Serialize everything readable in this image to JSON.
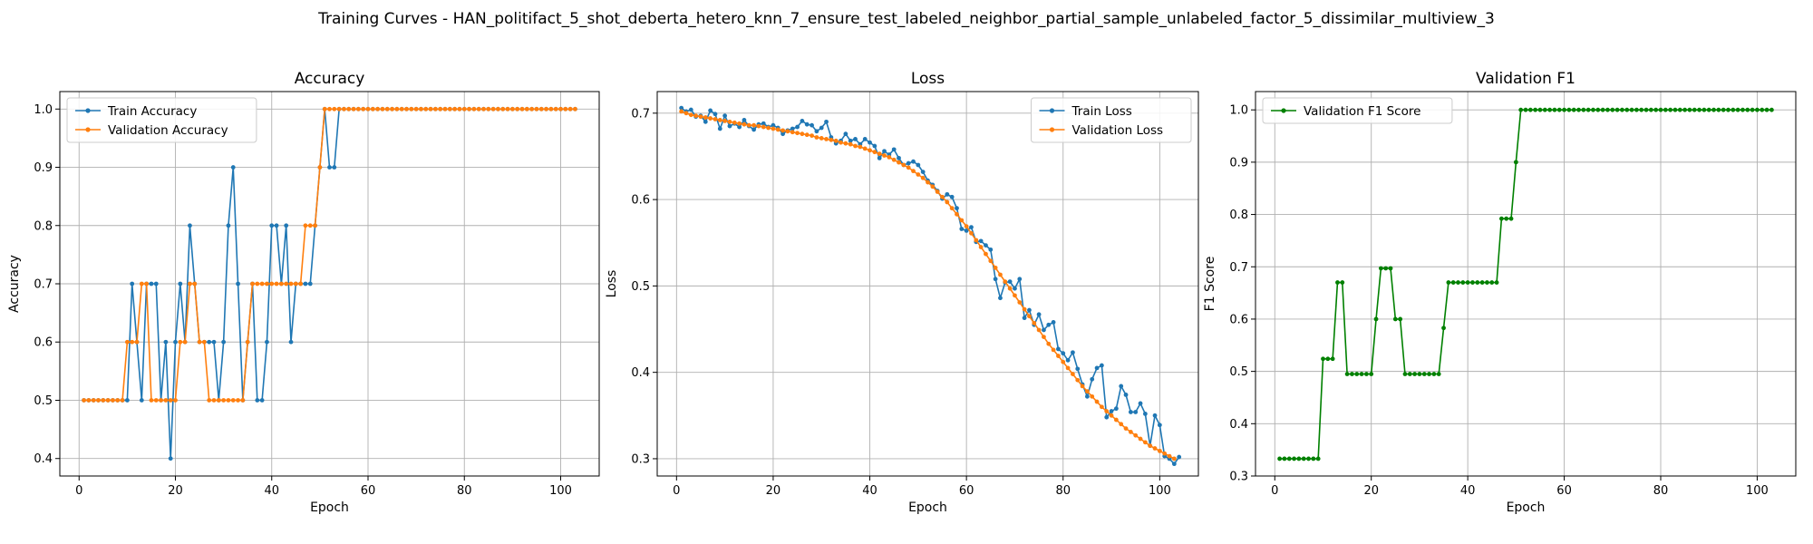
{
  "figure": {
    "suptitle": "Training Curves - HAN_politifact_5_shot_deberta_hetero_knn_7_ensure_test_labeled_neighbor_partial_sample_unlabeled_factor_5_dissimilar_multiview_3"
  },
  "chart_data": [
    {
      "type": "line",
      "title": "Accuracy",
      "xlabel": "Epoch",
      "ylabel": "Accuracy",
      "xlim": [
        -4,
        108
      ],
      "ylim": [
        0.37,
        1.03
      ],
      "xticks": [
        0,
        20,
        40,
        60,
        80,
        100
      ],
      "yticks": [
        0.4,
        0.5,
        0.6,
        0.7,
        0.8,
        0.9,
        1.0
      ],
      "grid": true,
      "legend_loc": "upper-left",
      "series": [
        {
          "name": "Train Accuracy",
          "color": "#1f77b4",
          "x_start": 1,
          "values": [
            0.5,
            0.5,
            0.5,
            0.5,
            0.5,
            0.5,
            0.5,
            0.5,
            0.5,
            0.5,
            0.7,
            0.6,
            0.5,
            0.7,
            0.7,
            0.7,
            0.5,
            0.6,
            0.4,
            0.6,
            0.7,
            0.6,
            0.8,
            0.7,
            0.6,
            0.6,
            0.6,
            0.6,
            0.5,
            0.6,
            0.8,
            0.9,
            0.7,
            0.5,
            0.6,
            0.7,
            0.5,
            0.5,
            0.6,
            0.8,
            0.8,
            0.7,
            0.8,
            0.6,
            0.7,
            0.7,
            0.7,
            0.7,
            0.8,
            0.9,
            1.0,
            0.9,
            0.9,
            1.0,
            1.0,
            1.0,
            1.0,
            1.0,
            1.0,
            1.0,
            1.0,
            1.0,
            1.0,
            1.0,
            1.0,
            1.0,
            1.0,
            1.0,
            1.0,
            1.0,
            1.0,
            1.0,
            1.0,
            1.0,
            1.0,
            1.0,
            1.0,
            1.0,
            1.0,
            1.0,
            1.0,
            1.0,
            1.0,
            1.0,
            1.0,
            1.0,
            1.0,
            1.0,
            1.0,
            1.0,
            1.0,
            1.0,
            1.0,
            1.0,
            1.0,
            1.0,
            1.0,
            1.0,
            1.0,
            1.0,
            1.0,
            1.0,
            1.0
          ]
        },
        {
          "name": "Validation Accuracy",
          "color": "#ff7f0e",
          "x_start": 1,
          "values": [
            0.5,
            0.5,
            0.5,
            0.5,
            0.5,
            0.5,
            0.5,
            0.5,
            0.5,
            0.6,
            0.6,
            0.6,
            0.7,
            0.7,
            0.5,
            0.5,
            0.5,
            0.5,
            0.5,
            0.5,
            0.6,
            0.6,
            0.7,
            0.7,
            0.6,
            0.6,
            0.5,
            0.5,
            0.5,
            0.5,
            0.5,
            0.5,
            0.5,
            0.5,
            0.6,
            0.7,
            0.7,
            0.7,
            0.7,
            0.7,
            0.7,
            0.7,
            0.7,
            0.7,
            0.7,
            0.7,
            0.8,
            0.8,
            0.8,
            0.9,
            1.0,
            1.0,
            1.0,
            1.0,
            1.0,
            1.0,
            1.0,
            1.0,
            1.0,
            1.0,
            1.0,
            1.0,
            1.0,
            1.0,
            1.0,
            1.0,
            1.0,
            1.0,
            1.0,
            1.0,
            1.0,
            1.0,
            1.0,
            1.0,
            1.0,
            1.0,
            1.0,
            1.0,
            1.0,
            1.0,
            1.0,
            1.0,
            1.0,
            1.0,
            1.0,
            1.0,
            1.0,
            1.0,
            1.0,
            1.0,
            1.0,
            1.0,
            1.0,
            1.0,
            1.0,
            1.0,
            1.0,
            1.0,
            1.0,
            1.0,
            1.0,
            1.0,
            1.0
          ]
        }
      ]
    },
    {
      "type": "line",
      "title": "Loss",
      "xlabel": "Epoch",
      "ylabel": "Loss",
      "xlim": [
        -4,
        108
      ],
      "ylim": [
        0.28,
        0.725
      ],
      "xticks": [
        0,
        20,
        40,
        60,
        80,
        100
      ],
      "yticks": [
        0.3,
        0.4,
        0.5,
        0.6,
        0.7
      ],
      "grid": true,
      "legend_loc": "upper-right",
      "series": [
        {
          "name": "Train Loss",
          "color": "#1f77b4",
          "x_start": 1,
          "values": [
            0.706,
            0.702,
            0.704,
            0.696,
            0.697,
            0.69,
            0.703,
            0.699,
            0.682,
            0.697,
            0.685,
            0.688,
            0.684,
            0.692,
            0.685,
            0.681,
            0.687,
            0.688,
            0.684,
            0.686,
            0.683,
            0.676,
            0.68,
            0.682,
            0.684,
            0.691,
            0.687,
            0.686,
            0.679,
            0.683,
            0.69,
            0.672,
            0.665,
            0.668,
            0.676,
            0.668,
            0.67,
            0.664,
            0.67,
            0.666,
            0.662,
            0.648,
            0.656,
            0.652,
            0.658,
            0.648,
            0.64,
            0.642,
            0.644,
            0.64,
            0.632,
            0.622,
            0.617,
            0.61,
            0.601,
            0.606,
            0.603,
            0.59,
            0.566,
            0.564,
            0.568,
            0.551,
            0.552,
            0.547,
            0.542,
            0.508,
            0.486,
            0.504,
            0.505,
            0.497,
            0.508,
            0.463,
            0.472,
            0.455,
            0.467,
            0.449,
            0.455,
            0.458,
            0.427,
            0.422,
            0.414,
            0.423,
            0.404,
            0.386,
            0.372,
            0.392,
            0.405,
            0.408,
            0.348,
            0.355,
            0.358,
            0.384,
            0.374,
            0.354,
            0.354,
            0.364,
            0.352,
            0.315,
            0.35,
            0.339,
            0.303,
            0.3,
            0.294,
            0.302
          ]
        },
        {
          "name": "Validation Loss",
          "color": "#ff7f0e",
          "x_start": 1,
          "values": [
            0.702,
            0.7,
            0.698,
            0.697,
            0.696,
            0.695,
            0.694,
            0.693,
            0.692,
            0.691,
            0.69,
            0.689,
            0.688,
            0.687,
            0.686,
            0.686,
            0.685,
            0.684,
            0.683,
            0.682,
            0.681,
            0.68,
            0.679,
            0.678,
            0.677,
            0.676,
            0.675,
            0.674,
            0.672,
            0.671,
            0.67,
            0.669,
            0.668,
            0.666,
            0.665,
            0.664,
            0.662,
            0.661,
            0.659,
            0.657,
            0.655,
            0.653,
            0.651,
            0.649,
            0.646,
            0.643,
            0.64,
            0.637,
            0.633,
            0.629,
            0.625,
            0.62,
            0.615,
            0.609,
            0.603,
            0.597,
            0.59,
            0.583,
            0.576,
            0.569,
            0.561,
            0.553,
            0.545,
            0.537,
            0.529,
            0.521,
            0.513,
            0.505,
            0.497,
            0.489,
            0.481,
            0.473,
            0.465,
            0.457,
            0.449,
            0.441,
            0.433,
            0.426,
            0.419,
            0.412,
            0.405,
            0.398,
            0.391,
            0.384,
            0.378,
            0.372,
            0.366,
            0.36,
            0.355,
            0.35,
            0.345,
            0.34,
            0.335,
            0.331,
            0.327,
            0.323,
            0.319,
            0.315,
            0.312,
            0.309,
            0.306,
            0.303,
            0.3
          ]
        }
      ]
    },
    {
      "type": "line",
      "title": "Validation F1",
      "xlabel": "Epoch",
      "ylabel": "F1 Score",
      "xlim": [
        -4,
        108
      ],
      "ylim": [
        0.3,
        1.035
      ],
      "xticks": [
        0,
        20,
        40,
        60,
        80,
        100
      ],
      "yticks": [
        0.3,
        0.4,
        0.5,
        0.6,
        0.7,
        0.8,
        0.9,
        1.0
      ],
      "grid": true,
      "legend_loc": "upper-left",
      "series": [
        {
          "name": "Validation F1 Score",
          "color": "#008000",
          "x_start": 1,
          "values": [
            0.333,
            0.333,
            0.333,
            0.333,
            0.333,
            0.333,
            0.333,
            0.333,
            0.333,
            0.524,
            0.524,
            0.524,
            0.67,
            0.67,
            0.495,
            0.495,
            0.495,
            0.495,
            0.495,
            0.495,
            0.6,
            0.697,
            0.697,
            0.697,
            0.6,
            0.6,
            0.495,
            0.495,
            0.495,
            0.495,
            0.495,
            0.495,
            0.495,
            0.495,
            0.583,
            0.67,
            0.67,
            0.67,
            0.67,
            0.67,
            0.67,
            0.67,
            0.67,
            0.67,
            0.67,
            0.67,
            0.792,
            0.792,
            0.792,
            0.9,
            1.0,
            1.0,
            1.0,
            1.0,
            1.0,
            1.0,
            1.0,
            1.0,
            1.0,
            1.0,
            1.0,
            1.0,
            1.0,
            1.0,
            1.0,
            1.0,
            1.0,
            1.0,
            1.0,
            1.0,
            1.0,
            1.0,
            1.0,
            1.0,
            1.0,
            1.0,
            1.0,
            1.0,
            1.0,
            1.0,
            1.0,
            1.0,
            1.0,
            1.0,
            1.0,
            1.0,
            1.0,
            1.0,
            1.0,
            1.0,
            1.0,
            1.0,
            1.0,
            1.0,
            1.0,
            1.0,
            1.0,
            1.0,
            1.0,
            1.0,
            1.0,
            1.0,
            1.0
          ]
        }
      ]
    }
  ]
}
